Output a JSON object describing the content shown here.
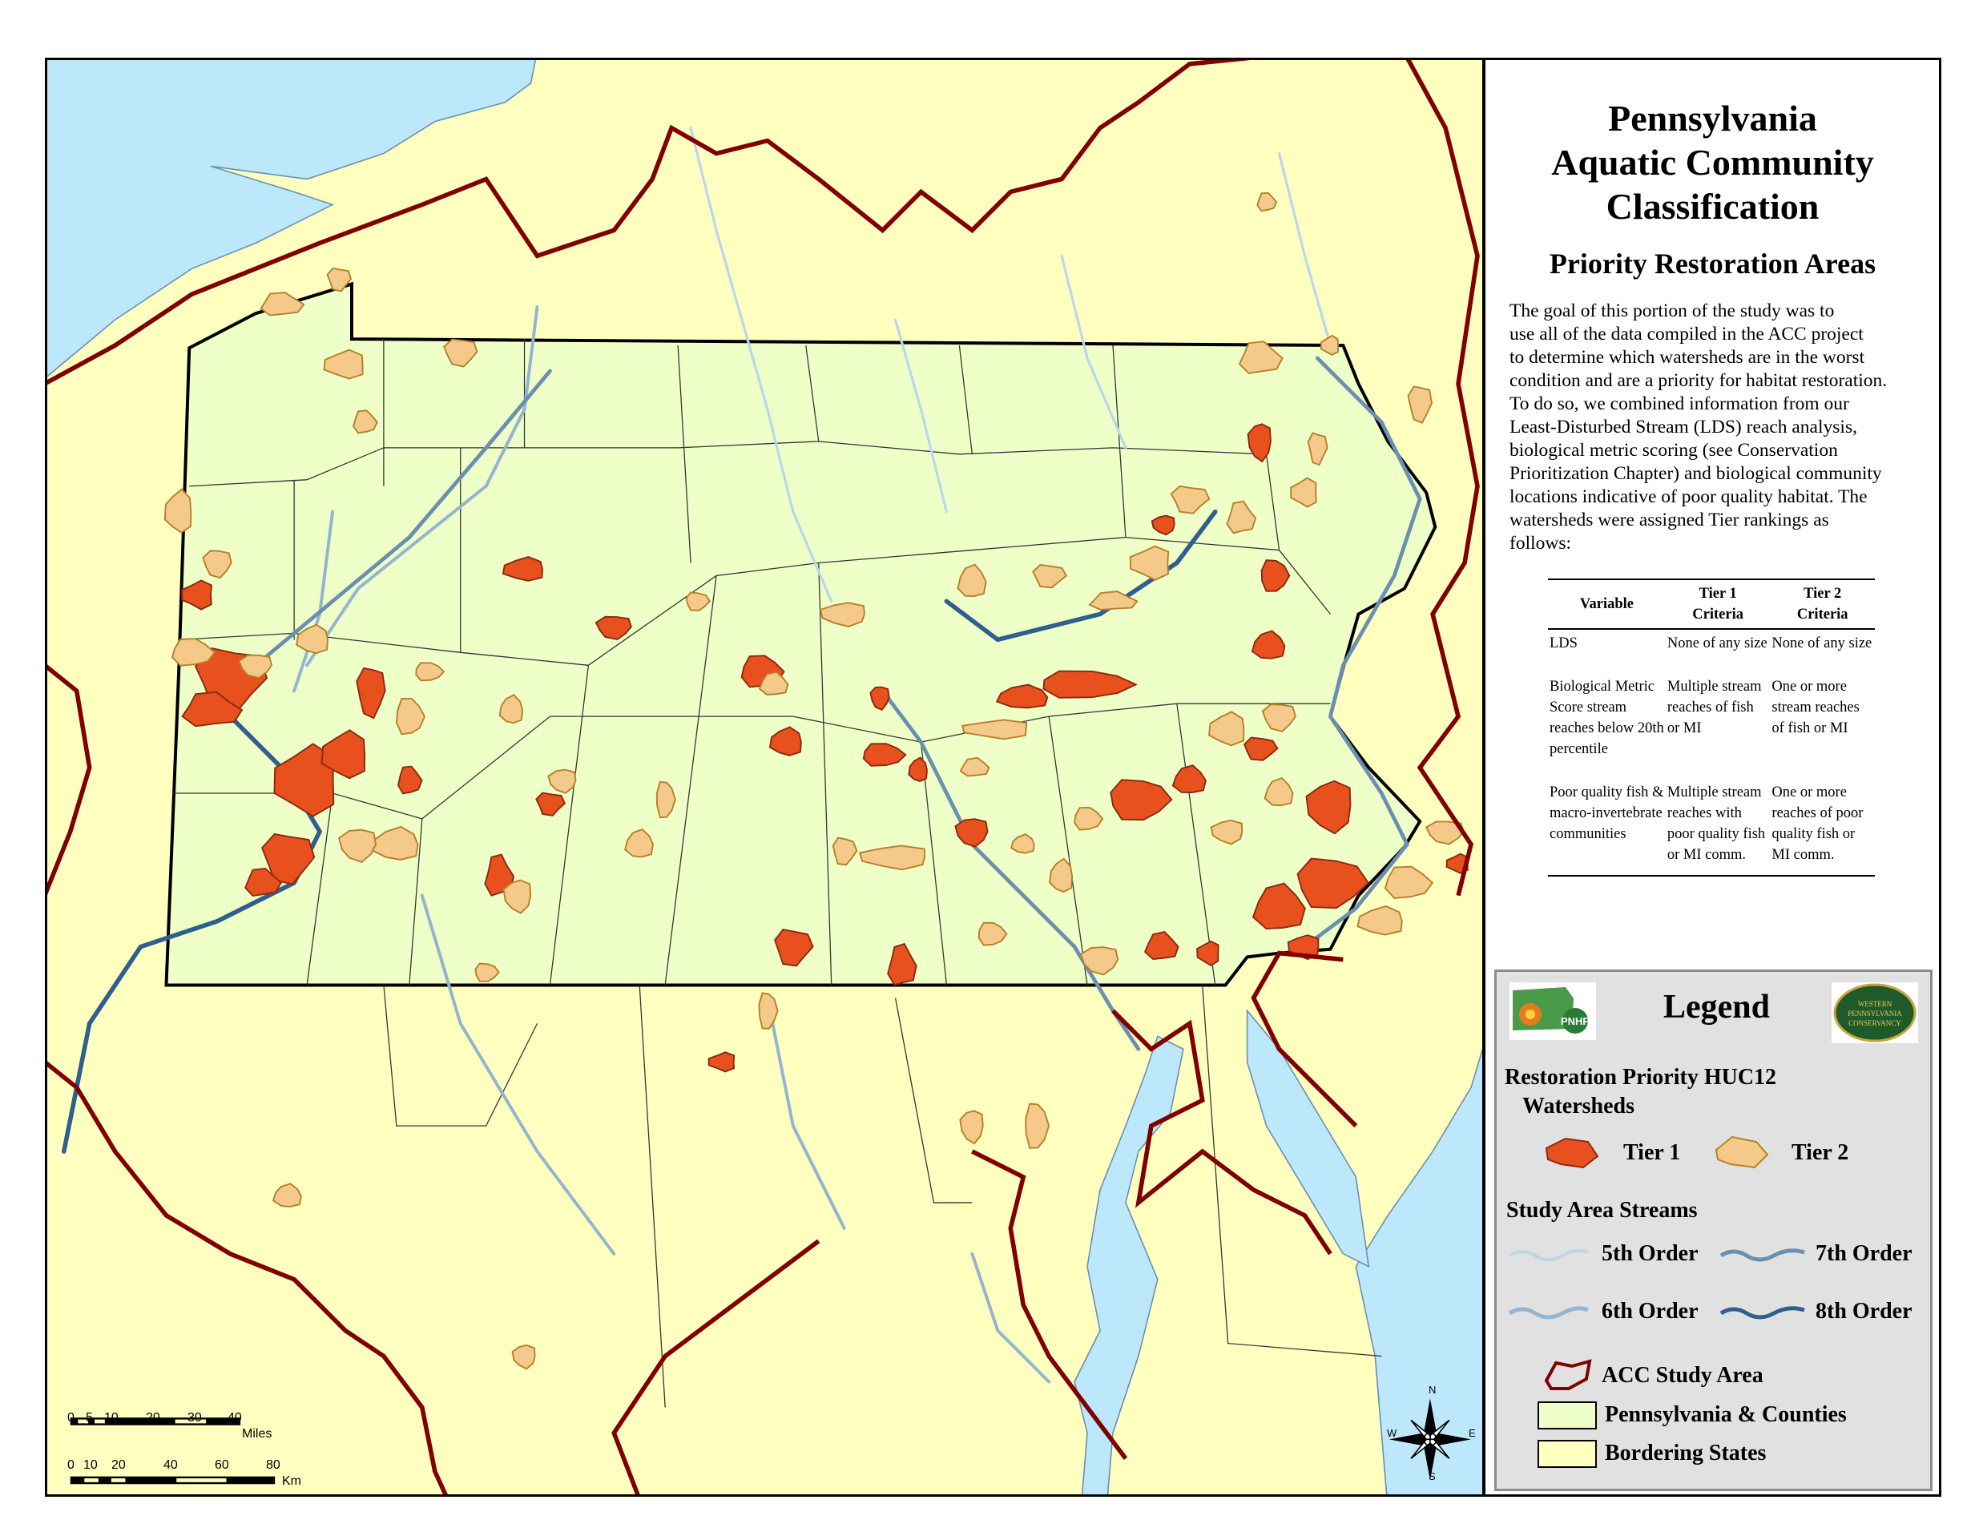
{
  "title_lines": [
    "Pennsylvania",
    "Aquatic Community",
    "Classification"
  ],
  "subtitle": "Priority Restoration Areas",
  "description_lines": [
    "The goal of this portion of the study was to",
    "use all of the data compiled in the ACC project",
    "to determine which watersheds are in the worst",
    "condition and are a priority for habitat restoration.",
    "To do so, we combined information from our",
    "Least-Disturbed Stream (LDS) reach analysis,",
    "biological metric scoring (see Conservation",
    "Prioritization Chapter) and biological community",
    "locations indicative of poor quality habitat. The",
    "watersheds were assigned Tier rankings as",
    "follows:"
  ],
  "criteria_table": {
    "headers": [
      "Variable",
      "Tier 1 Criteria",
      "Tier 2 Criteria"
    ],
    "rows": [
      [
        "LDS",
        "None of any size",
        "None of any size"
      ],
      [
        "Biological Metric Score stream reaches below 20th percentile",
        "Multiple stream reaches of fish or MI",
        "One or more stream reaches of fish or MI"
      ],
      [
        "Poor quality fish & macro-invertebrate communities",
        "Multiple stream reaches with  poor quality fish or MI comm.",
        "One or more reaches of poor quality fish or MI comm."
      ]
    ]
  },
  "legend": {
    "title": "Legend",
    "logo_left": "PNHP",
    "logo_right": "Western Pennsylvania Conservancy",
    "watersheds_heading_1": "Restoration Priority HUC12",
    "watersheds_heading_2": "Watersheds",
    "tier1": "Tier 1",
    "tier2": "Tier 2",
    "streams_heading": "Study Area Streams",
    "order5": "5th Order",
    "order6": "6th Order",
    "order7": "7th Order",
    "order8": "8th Order",
    "study_area": "ACC Study Area",
    "pa_counties": "Pennsylvania & Counties",
    "bordering": "Bordering States"
  },
  "scale_bar": {
    "miles_ticks": [
      "0",
      "5",
      "10",
      "20",
      "30",
      "40"
    ],
    "miles_unit": "Miles",
    "km_ticks": [
      "0",
      "10",
      "20",
      "40",
      "60",
      "80"
    ],
    "km_unit": "Km"
  },
  "compass": {
    "n": "N",
    "s": "S",
    "e": "E",
    "w": "W"
  },
  "colors": {
    "tier1": "#e8501e",
    "tier2": "#f5c98a",
    "pennsylvania": "#eeffc8",
    "bordering_states": "#ffffc0",
    "water": "#bde7fb",
    "study_area_boundary": "#800000",
    "stream_5th": "#b8d8ea",
    "stream_6th": "#94b4cf",
    "stream_7th": "#6a8fb0",
    "stream_8th": "#2f5f8f"
  }
}
